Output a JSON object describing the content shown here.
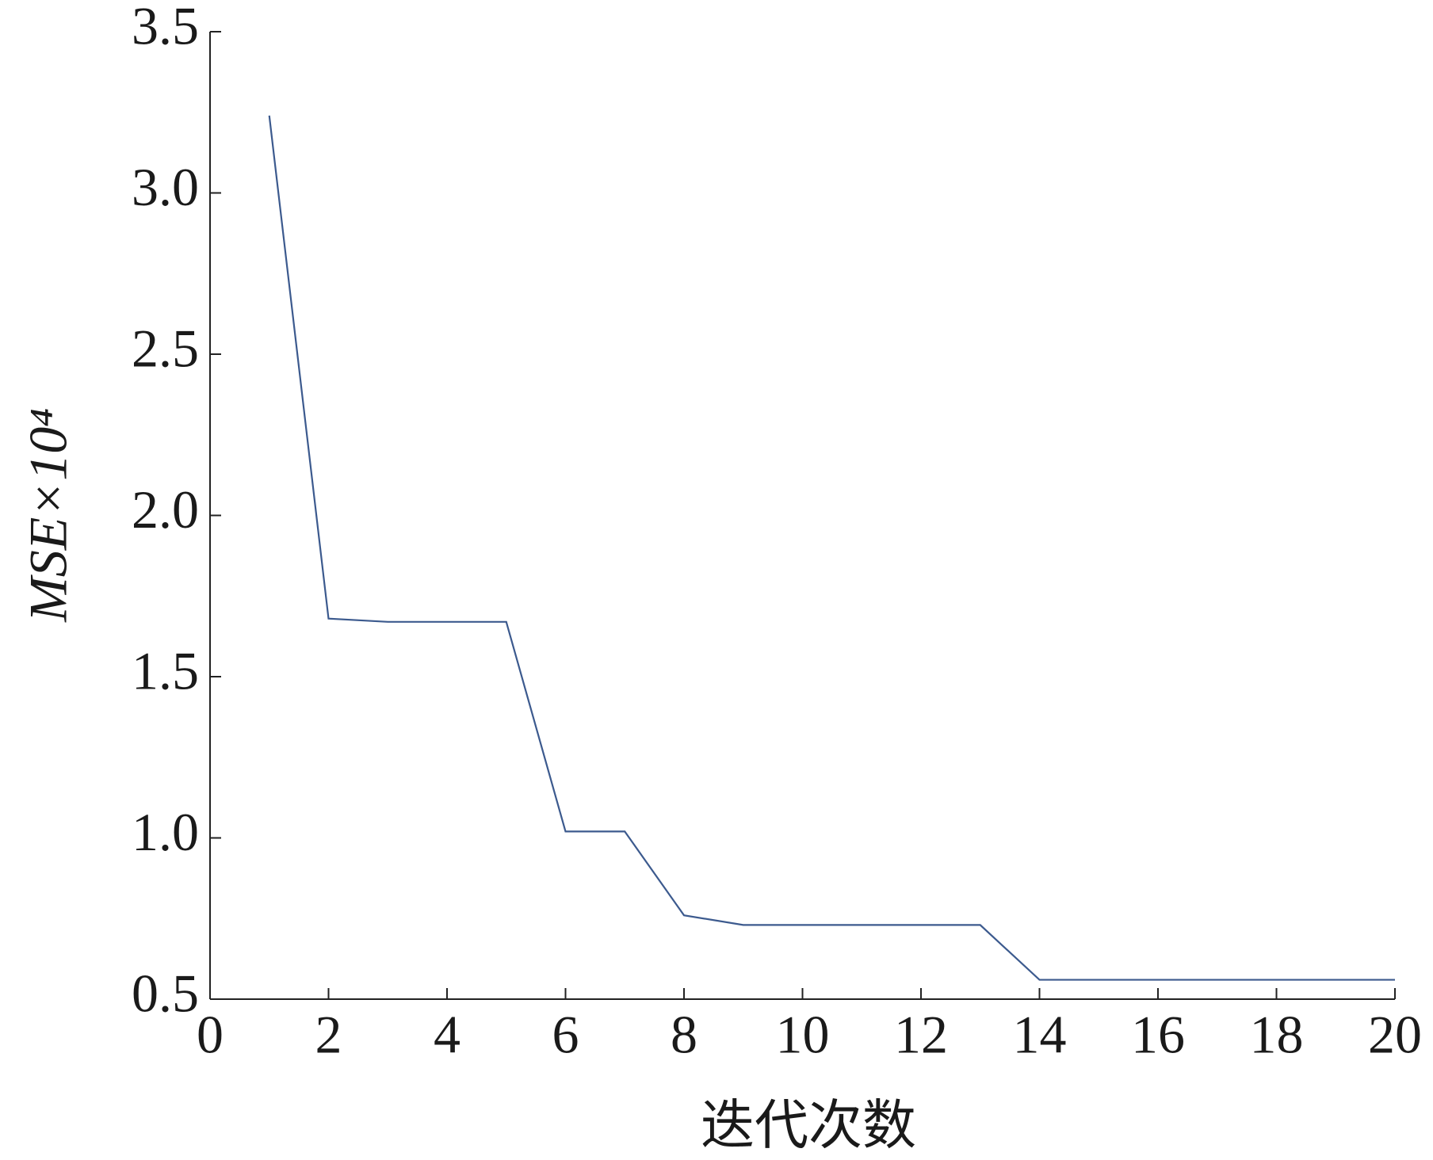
{
  "chart_data": {
    "type": "line",
    "xlabel": "迭代次数",
    "ylabel": "MSE×10⁴",
    "x": [
      1,
      2,
      3,
      4,
      5,
      6,
      7,
      8,
      9,
      10,
      11,
      12,
      13,
      14,
      15,
      16,
      17,
      18,
      19,
      20
    ],
    "series": [
      {
        "color": "#3c5a8e",
        "values": [
          3.24,
          1.68,
          1.67,
          1.67,
          1.67,
          1.02,
          1.02,
          0.76,
          0.73,
          0.73,
          0.73,
          0.73,
          0.73,
          0.56,
          0.56,
          0.56,
          0.56,
          0.56,
          0.56,
          0.56
        ]
      }
    ],
    "xlim": [
      0,
      20
    ],
    "xticks": [
      0,
      2,
      4,
      6,
      8,
      10,
      12,
      14,
      16,
      18,
      20
    ],
    "ylim": [
      0.5,
      3.5
    ],
    "yticks": [
      0.5,
      {
        "value": 1,
        "label": "1.0"
      },
      1.5,
      {
        "value": 2,
        "label": "2.0"
      },
      2.5,
      {
        "value": 3,
        "label": "3.0"
      },
      3.5
    ],
    "grid": false
  }
}
